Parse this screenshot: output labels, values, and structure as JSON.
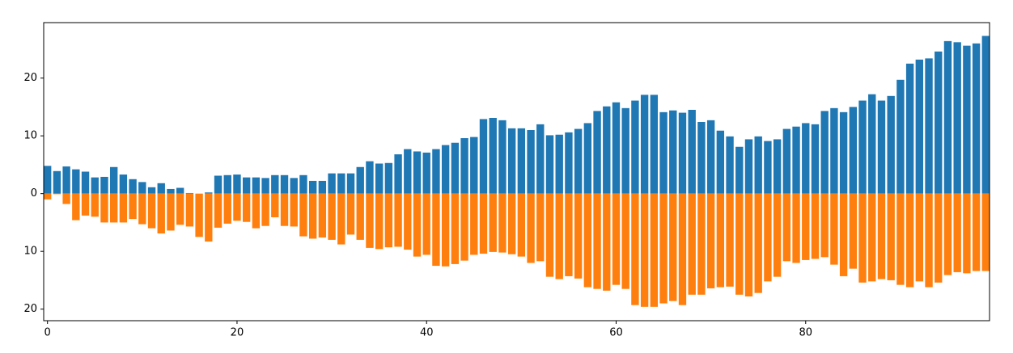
{
  "chart_data": {
    "type": "bar",
    "x": [
      0,
      1,
      2,
      3,
      4,
      5,
      6,
      7,
      8,
      9,
      10,
      11,
      12,
      13,
      14,
      15,
      16,
      17,
      18,
      19,
      20,
      21,
      22,
      23,
      24,
      25,
      26,
      27,
      28,
      29,
      30,
      31,
      32,
      33,
      34,
      35,
      36,
      37,
      38,
      39,
      40,
      41,
      42,
      43,
      44,
      45,
      46,
      47,
      48,
      49,
      50,
      51,
      52,
      53,
      54,
      55,
      56,
      57,
      58,
      59,
      60,
      61,
      62,
      63,
      64,
      65,
      66,
      67,
      68,
      69,
      70,
      71,
      72,
      73,
      74,
      75,
      76,
      77,
      78,
      79,
      80,
      81,
      82,
      83,
      84,
      85,
      86,
      87,
      88,
      89,
      90,
      91,
      92,
      93,
      94,
      95,
      96,
      97,
      98,
      99
    ],
    "series": [
      {
        "color": "#1f77b4",
        "values": [
          4.8,
          3.9,
          4.7,
          4.2,
          3.8,
          2.8,
          2.9,
          4.6,
          3.3,
          2.5,
          2.0,
          1.1,
          1.8,
          0.8,
          1.0,
          0.1,
          0,
          0.2,
          3.1,
          3.2,
          3.3,
          2.8,
          2.8,
          2.7,
          3.2,
          3.2,
          2.7,
          3.2,
          2.2,
          2.2,
          3.5,
          3.5,
          3.5,
          4.6,
          5.6,
          5.2,
          5.3,
          6.8,
          7.7,
          7.3,
          7.1,
          7.7,
          8.4,
          8.8,
          9.6,
          9.8,
          12.9,
          13.1,
          12.7,
          11.3,
          11.3,
          11.0,
          12.0,
          10.1,
          10.2,
          10.6,
          11.2,
          12.2,
          14.3,
          15.1,
          15.8,
          14.8,
          16.1,
          17.1,
          17.1,
          14.1,
          14.4,
          14.0,
          14.5,
          12.4,
          12.7,
          10.9,
          9.9,
          8.1,
          9.4,
          9.9,
          9.1,
          9.4,
          11.2,
          11.6,
          12.2,
          12.0,
          14.3,
          14.8,
          14.1,
          15.0,
          16.1,
          17.2,
          16.1,
          16.9,
          19.7,
          22.5,
          23.2,
          23.4,
          24.6,
          26.4,
          26.2,
          25.6,
          26.0,
          27.3
        ]
      },
      {
        "color": "#ff7f0e",
        "values": [
          -1.0,
          -0.1,
          -1.8,
          -4.6,
          -3.8,
          -4.0,
          -5.0,
          -5.0,
          -5.0,
          -4.4,
          -5.3,
          -6.0,
          -6.9,
          -6.4,
          -5.4,
          -5.7,
          -7.5,
          -8.3,
          -5.9,
          -5.2,
          -4.7,
          -4.9,
          -6.0,
          -5.6,
          -4.1,
          -5.6,
          -5.7,
          -7.4,
          -7.8,
          -7.6,
          -8.0,
          -8.8,
          -7.1,
          -8.0,
          -9.4,
          -9.6,
          -9.3,
          -9.2,
          -9.7,
          -10.9,
          -10.6,
          -12.5,
          -12.6,
          -12.2,
          -11.6,
          -10.6,
          -10.4,
          -10.1,
          -10.2,
          -10.5,
          -10.9,
          -12.0,
          -11.7,
          -14.4,
          -14.8,
          -14.3,
          -14.7,
          -16.2,
          -16.5,
          -16.8,
          -15.8,
          -16.5,
          -19.3,
          -19.6,
          -19.6,
          -19.0,
          -18.6,
          -19.3,
          -17.5,
          -17.5,
          -16.4,
          -16.2,
          -16.1,
          -17.5,
          -17.8,
          -17.2,
          -15.2,
          -14.4,
          -11.7,
          -12.0,
          -11.5,
          -11.3,
          -11.0,
          -12.3,
          -14.3,
          -13.0,
          -15.4,
          -15.2,
          -14.8,
          -15.0,
          -15.8,
          -16.2,
          -15.2,
          -16.2,
          -15.4,
          -14.1,
          -13.6,
          -13.8,
          -13.4,
          -13.4
        ]
      }
    ],
    "xlim": [
      -0.4,
      99.4
    ],
    "xticks": [
      0,
      20,
      40,
      60,
      80
    ],
    "ylim": [
      -22,
      29.6
    ],
    "yticks": [
      {
        "value": -20,
        "label": "20"
      },
      {
        "value": -10,
        "label": "10"
      },
      0,
      10,
      20
    ],
    "grid": false
  }
}
